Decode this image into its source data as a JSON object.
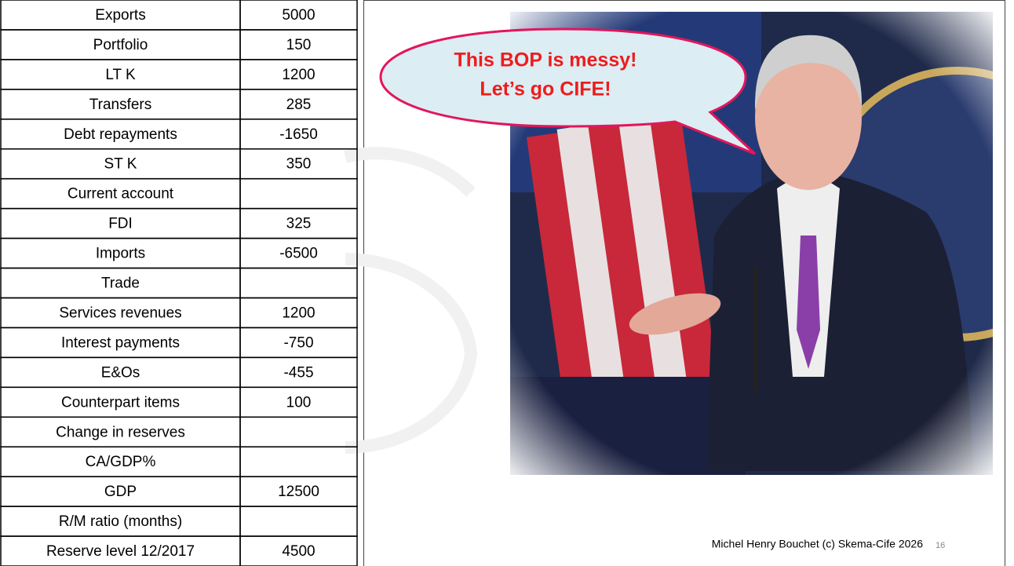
{
  "table": {
    "rows": [
      {
        "label": "Exports",
        "value": "5000"
      },
      {
        "label": "Portfolio",
        "value": "150"
      },
      {
        "label": "LT K",
        "value": "1200"
      },
      {
        "label": "Transfers",
        "value": "285"
      },
      {
        "label": "Debt repayments",
        "value": "-1650"
      },
      {
        "label": "ST K",
        "value": "350"
      },
      {
        "label": "Current account"
      },
      {
        "label": "FDI",
        "value": "325"
      },
      {
        "label": "Imports",
        "value": "-6500"
      },
      {
        "label": "Trade"
      },
      {
        "label": "Services revenues",
        "value": "1200"
      },
      {
        "label": "Interest payments",
        "value": "-750"
      },
      {
        "label": "E&Os",
        "value": "-455"
      },
      {
        "label": "Counterpart items",
        "value": "100"
      },
      {
        "label": "Change in reserves"
      },
      {
        "label": "CA/GDP%"
      },
      {
        "label": "GDP",
        "value": "12500"
      },
      {
        "label": "R/M ratio (months)"
      },
      {
        "label": "Reserve level 12/2017",
        "value": "4500"
      }
    ]
  },
  "bubble": {
    "lines": [
      "This BOP is messy!",
      "Let’s go CIFE!"
    ]
  },
  "footer": {
    "text": "Michel Henry Bouchet (c)  Skema-Cife 2026",
    "page": "16"
  }
}
